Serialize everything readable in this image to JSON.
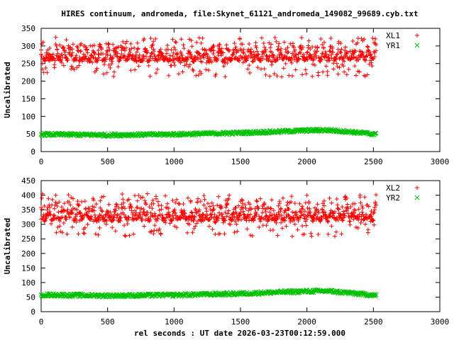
{
  "chart_data": {
    "type": "scatter",
    "title": "HIRES continuum, andromeda, file:Skynet_61121_andromeda_149082_99689.cyb.txt",
    "xlabel": "rel seconds : UT date 2026-03-23T00:12:59.000",
    "x_ticks": [
      "0",
      "500",
      "1000",
      "1500",
      "2000",
      "2500",
      "3000"
    ],
    "xlim": [
      0,
      3000
    ],
    "grid": false,
    "legend_position": "top-right",
    "panels": [
      {
        "ylabel": "Uncalibrated",
        "ylim": [
          0,
          350
        ],
        "y_ticks": [
          "0",
          "50",
          "100",
          "150",
          "200",
          "250",
          "300",
          "350"
        ],
        "series": [
          {
            "name": "XL1",
            "marker": "plus",
            "color": "#ff0000",
            "x_range": [
              0,
              2520
            ],
            "oscillation_period_s": 56,
            "y_min": 212,
            "y_max": 325,
            "dense_band": [
              238,
              305
            ]
          },
          {
            "name": "YR1",
            "marker": "cross",
            "color": "#00c000",
            "x_range": [
              0,
              2520
            ],
            "trend": [
              [
                0,
                49
              ],
              [
                500,
                47
              ],
              [
                1000,
                49
              ],
              [
                1500,
                53
              ],
              [
                1800,
                57
              ],
              [
                2000,
                60
              ],
              [
                2150,
                61
              ],
              [
                2300,
                57
              ],
              [
                2520,
                49
              ]
            ],
            "spread": 4
          }
        ]
      },
      {
        "ylabel": "Uncalibrated",
        "ylim": [
          0,
          450
        ],
        "y_ticks": [
          "0",
          "50",
          "100",
          "150",
          "200",
          "250",
          "300",
          "350",
          "400",
          "450"
        ],
        "series": [
          {
            "name": "XL2",
            "marker": "plus",
            "color": "#ff0000",
            "x_range": [
              0,
              2520
            ],
            "oscillation_period_s": 56,
            "y_min": 258,
            "y_max": 405,
            "dense_band": [
              285,
              380
            ]
          },
          {
            "name": "YR2",
            "marker": "cross",
            "color": "#00c000",
            "x_range": [
              0,
              2520
            ],
            "trend": [
              [
                0,
                58
              ],
              [
                500,
                55
              ],
              [
                1000,
                57
              ],
              [
                1500,
                62
              ],
              [
                1800,
                67
              ],
              [
                2000,
                70
              ],
              [
                2150,
                71
              ],
              [
                2300,
                65
              ],
              [
                2520,
                56
              ]
            ],
            "spread": 5
          }
        ]
      }
    ]
  }
}
